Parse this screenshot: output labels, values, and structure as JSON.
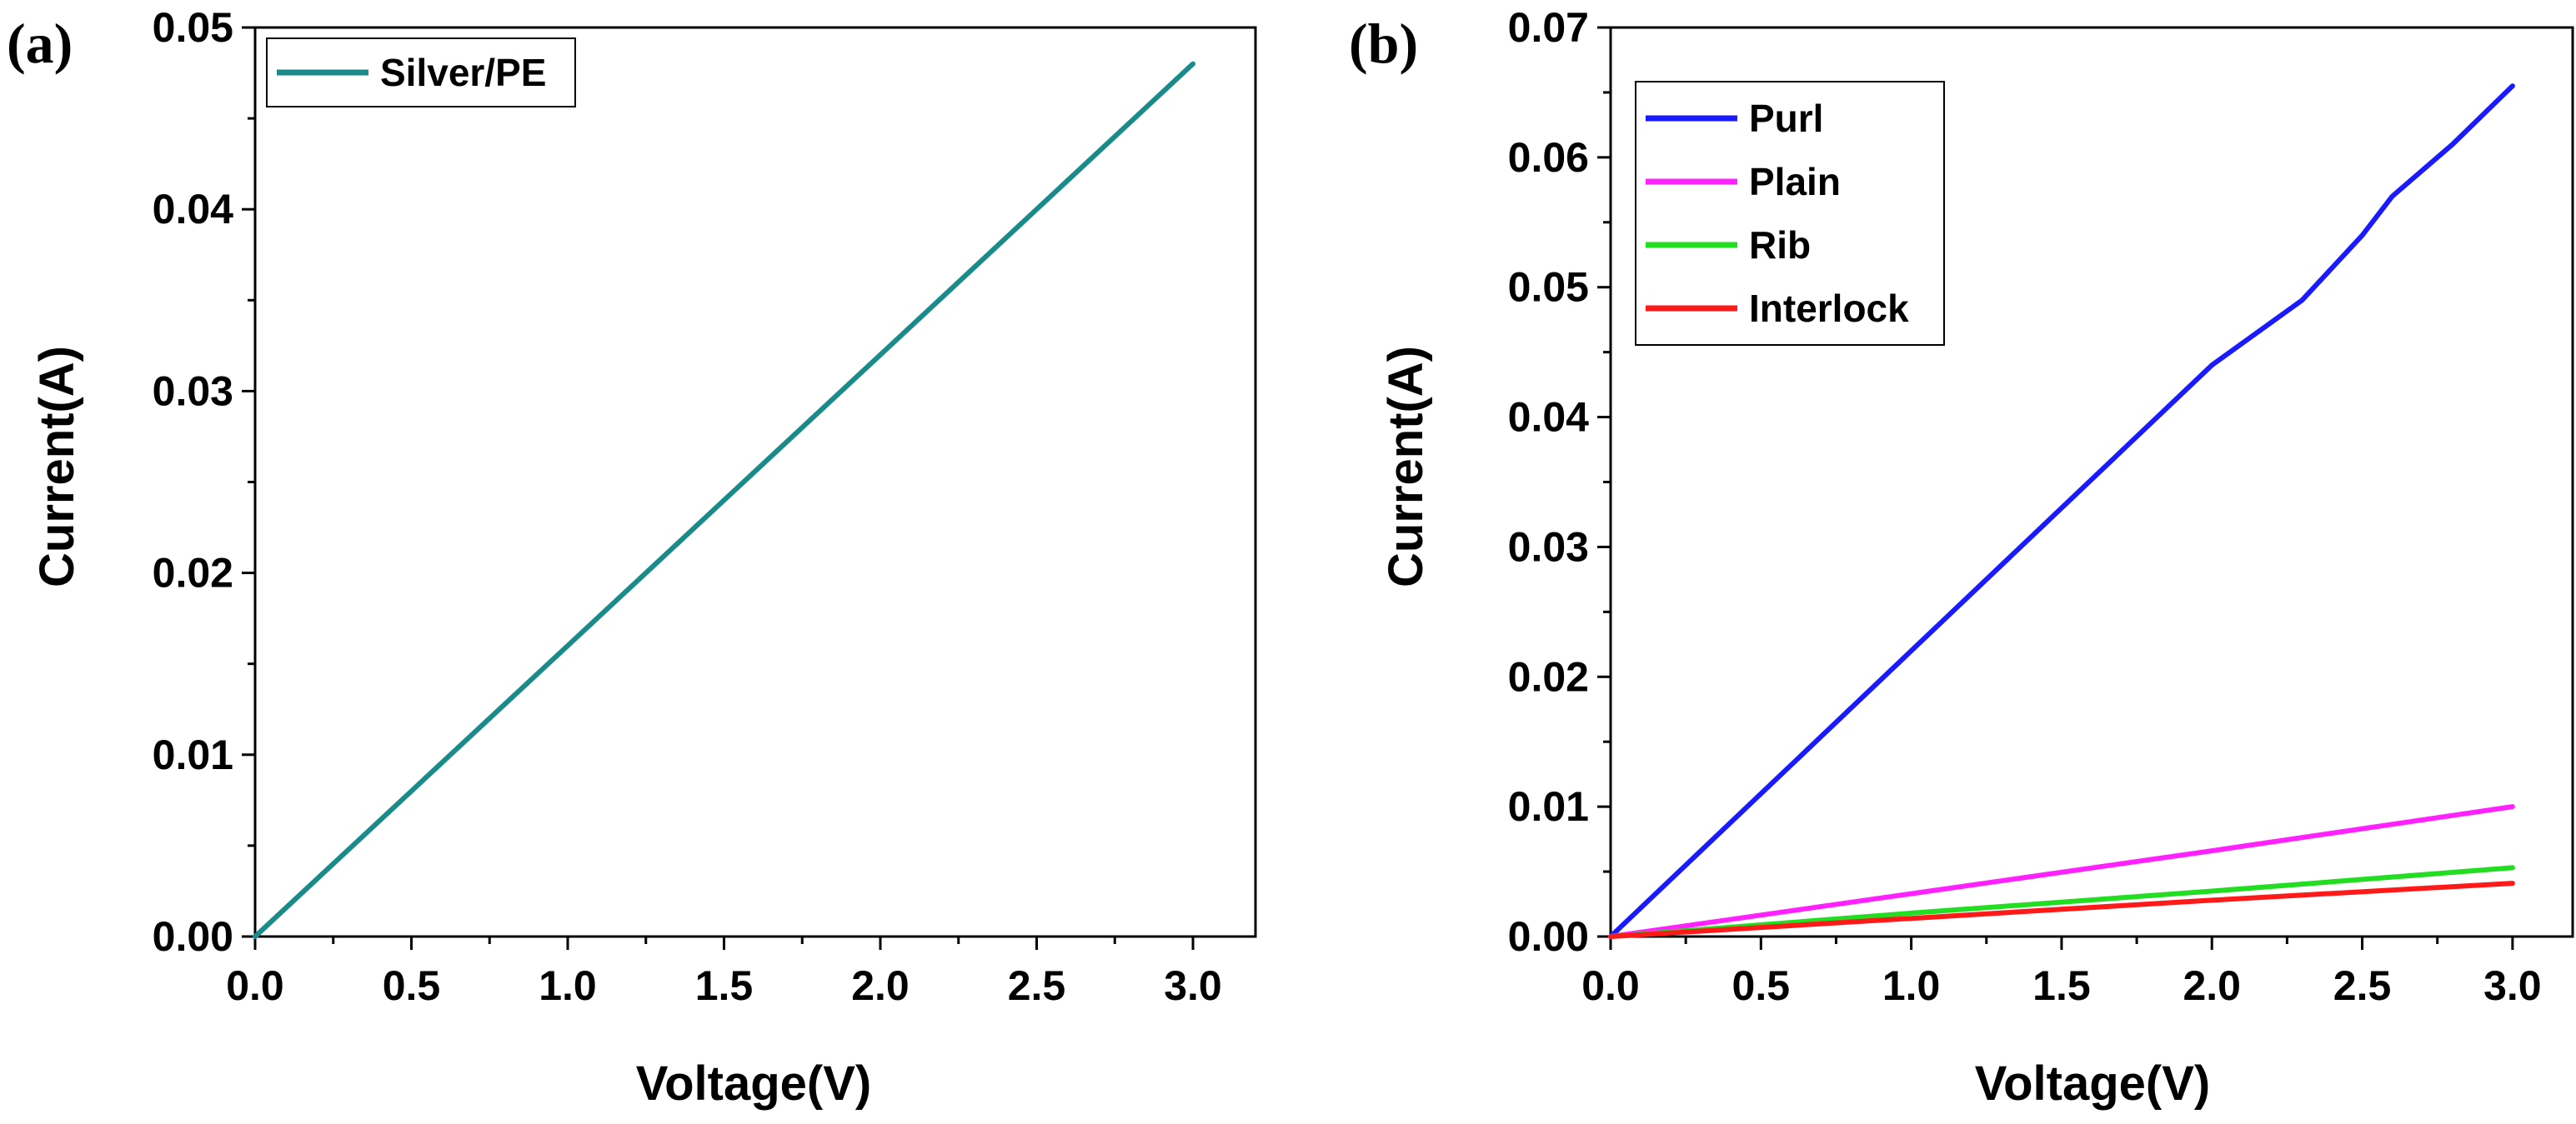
{
  "chart_data": [
    {
      "panel_label": "(a)",
      "type": "line",
      "title": "",
      "xlabel": "Voltage(V)",
      "ylabel": "Current(A)",
      "xlim": [
        0.0,
        3.2
      ],
      "ylim": [
        0.0,
        0.05
      ],
      "x_ticks": [
        "0.0",
        "0.5",
        "1.0",
        "1.5",
        "2.0",
        "2.5",
        "3.0"
      ],
      "y_ticks": [
        "0.00",
        "0.01",
        "0.02",
        "0.03",
        "0.04",
        "0.05"
      ],
      "grid": false,
      "legend_position": "top-left",
      "series": [
        {
          "name": "Silver/PE",
          "color": "#1a8a8a",
          "x": [
            0,
            0.5,
            1.0,
            1.5,
            2.0,
            2.5,
            3.0
          ],
          "values": [
            0,
            0.008,
            0.016,
            0.024,
            0.032,
            0.04,
            0.048
          ]
        }
      ]
    },
    {
      "panel_label": "(b)",
      "type": "line",
      "title": "",
      "xlabel": "Voltage(V)",
      "ylabel": "Current(A)",
      "xlim": [
        0.0,
        3.2
      ],
      "ylim": [
        0.0,
        0.07
      ],
      "x_ticks": [
        "0.0",
        "0.5",
        "1.0",
        "1.5",
        "2.0",
        "2.5",
        "3.0"
      ],
      "y_ticks": [
        "0.00",
        "0.01",
        "0.02",
        "0.03",
        "0.04",
        "0.05",
        "0.06",
        "0.07"
      ],
      "grid": false,
      "legend_position": "top-left",
      "series": [
        {
          "name": "Purl",
          "color": "#1a1aff",
          "x": [
            0,
            0.5,
            1.0,
            1.5,
            2.0,
            2.3,
            2.5,
            2.6,
            2.8,
            3.0
          ],
          "values": [
            0,
            0.011,
            0.022,
            0.033,
            0.044,
            0.049,
            0.054,
            0.057,
            0.061,
            0.0655
          ]
        },
        {
          "name": "Plain",
          "color": "#ff22ff",
          "x": [
            0,
            1.0,
            2.0,
            3.0
          ],
          "values": [
            0,
            0.0033,
            0.0066,
            0.01
          ]
        },
        {
          "name": "Rib",
          "color": "#22dd22",
          "x": [
            0,
            1.0,
            2.0,
            3.0
          ],
          "values": [
            0,
            0.0018,
            0.0035,
            0.0053
          ]
        },
        {
          "name": "Interlock",
          "color": "#ff1a1a",
          "x": [
            0,
            1.0,
            2.0,
            3.0
          ],
          "values": [
            0,
            0.0014,
            0.0028,
            0.0041
          ]
        }
      ]
    }
  ]
}
